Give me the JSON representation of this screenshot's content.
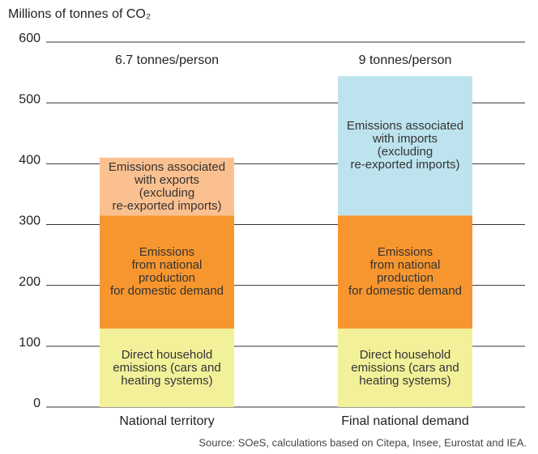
{
  "chart_data": {
    "type": "stacked_bar",
    "title": "Millions of tonnes of CO₂",
    "categories": [
      "National territory",
      "Final national demand"
    ],
    "annotations": [
      "6.7 tonnes/person",
      "9 tonnes/person"
    ],
    "series": [
      {
        "name": "Direct household\nemissions (cars and\nheating systems)",
        "color": "#f3f09a",
        "values": [
          129,
          129
        ]
      },
      {
        "name": "Emissions\nfrom national\nproduction\nfor domestic demand",
        "color": "#f7962e",
        "values": [
          186,
          186
        ]
      },
      {
        "name": "Emissions associated\nwith exports\n(excluding\nre-exported imports)",
        "color": "#fbc08f",
        "values": [
          95,
          null
        ]
      },
      {
        "name": "Emissions associated\nwith imports\n(excluding\nre-exported imports)",
        "color": "#bde3ee",
        "values": [
          null,
          229
        ]
      }
    ],
    "ylim": [
      0,
      600
    ],
    "yticks": [
      0,
      100,
      200,
      300,
      400,
      500,
      600
    ],
    "grid": true,
    "source": "Source: SOeS, calculations based on Citepa, Insee, Eurostat and IEA."
  }
}
